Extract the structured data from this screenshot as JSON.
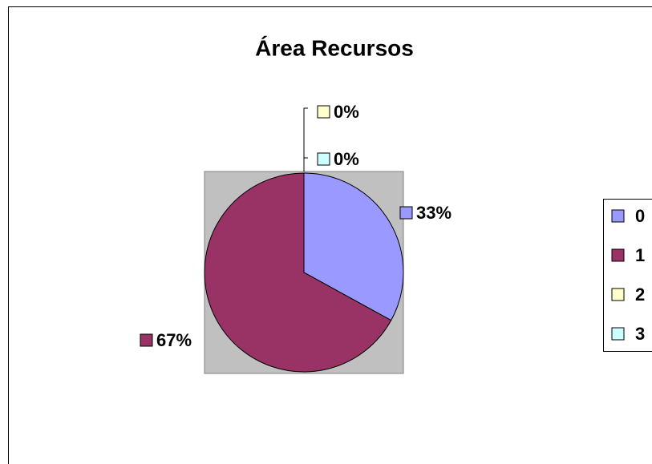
{
  "chart_data": {
    "type": "pie",
    "title": "Área Recursos",
    "categories": [
      "0",
      "1",
      "2",
      "3"
    ],
    "values": [
      33,
      67,
      0,
      0
    ],
    "value_labels": [
      "33%",
      "67%",
      "0%",
      "0%"
    ],
    "colors": [
      "#9999ff",
      "#993366",
      "#ffffcc",
      "#ccffff"
    ],
    "legend": "right"
  }
}
